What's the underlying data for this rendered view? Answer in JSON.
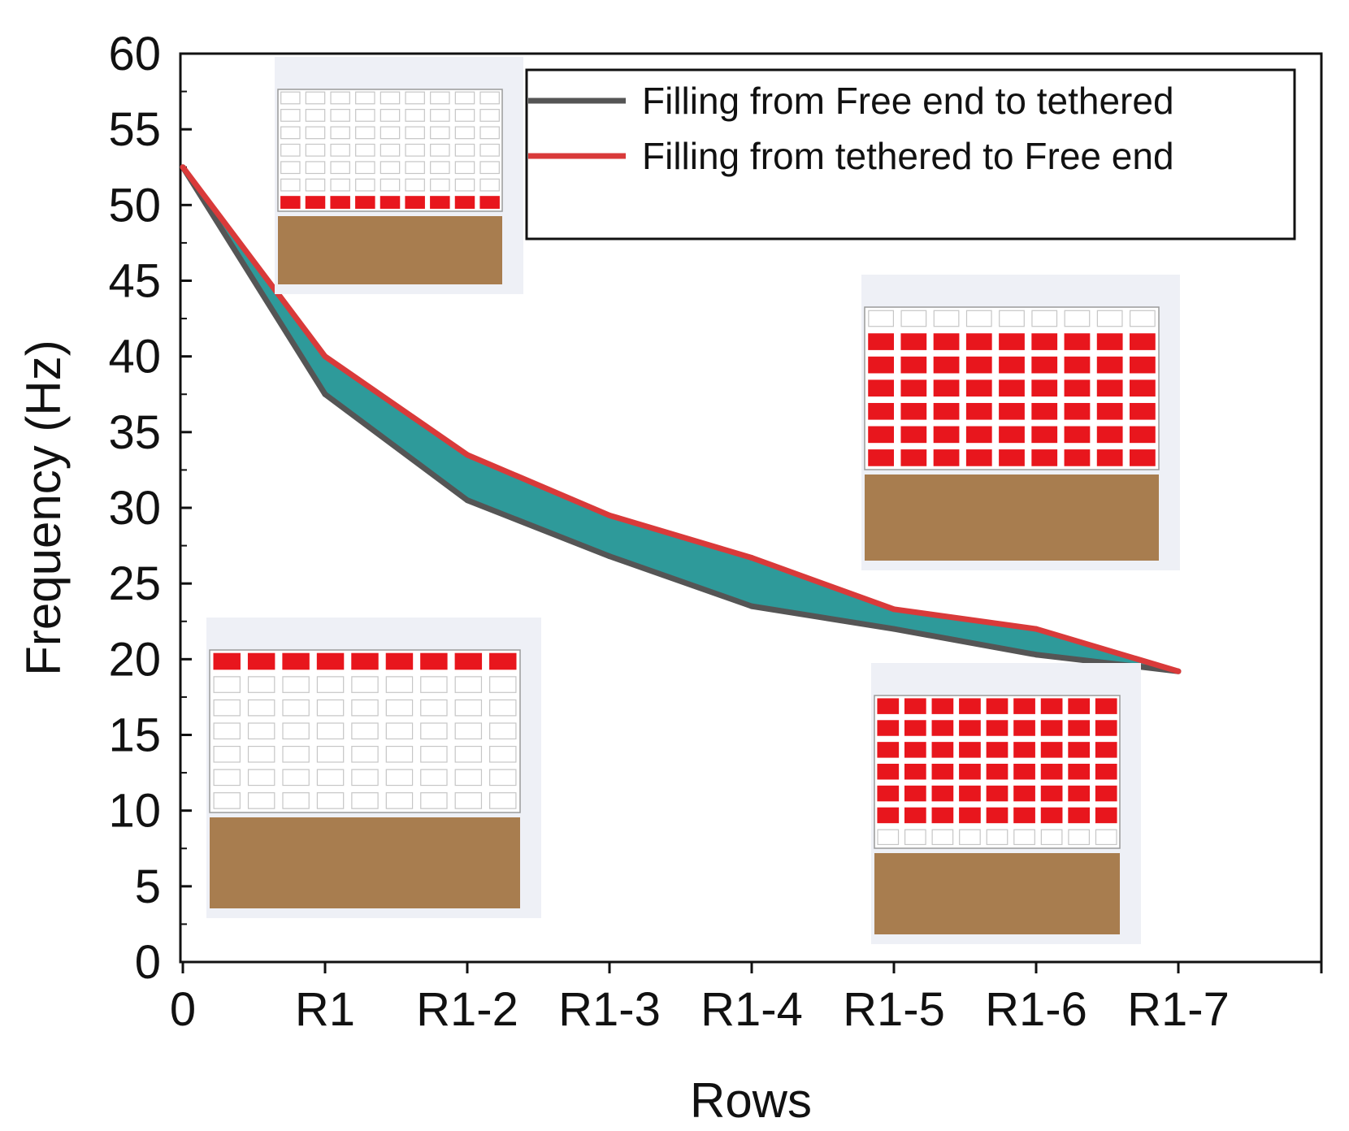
{
  "chart_data": {
    "type": "area",
    "title": "",
    "xlabel": "Rows",
    "ylabel": "Frequency (Hz)",
    "categories": [
      "0",
      "R1",
      "R1-2",
      "R1-3",
      "R1-4",
      "R1-5",
      "R1-6",
      "R1-7"
    ],
    "ylim": [
      0,
      60
    ],
    "yticks": [
      0,
      5,
      10,
      15,
      20,
      25,
      30,
      35,
      40,
      45,
      50,
      55,
      60
    ],
    "series": [
      {
        "name": "Filling from Free end to tethered",
        "color": "#555555",
        "values": [
          52.5,
          37.5,
          30.5,
          26.8,
          23.5,
          22.0,
          20.3,
          19.2
        ]
      },
      {
        "name": "Filling from tethered to Free end",
        "color": "#d93a3a",
        "values": [
          52.5,
          40.0,
          33.5,
          29.5,
          26.7,
          23.3,
          22.0,
          19.2
        ]
      }
    ],
    "band_fill": "#2e9a9a",
    "legend_position": "top-right",
    "grid": false,
    "insets": [
      {
        "name": "inset-top-left",
        "filled_rows": [
          "bottom"
        ]
      },
      {
        "name": "inset-right-middle",
        "filled_rows": [
          "top"
        ]
      },
      {
        "name": "inset-left-bottom",
        "filled_rows": [
          "row-1"
        ]
      },
      {
        "name": "inset-right-bottom",
        "filled_rows": [
          "1-6"
        ]
      }
    ],
    "colors": {
      "fill_cell": "#e8161d",
      "base_block": "#a87d4f",
      "frame": "#9a9a9a"
    }
  }
}
